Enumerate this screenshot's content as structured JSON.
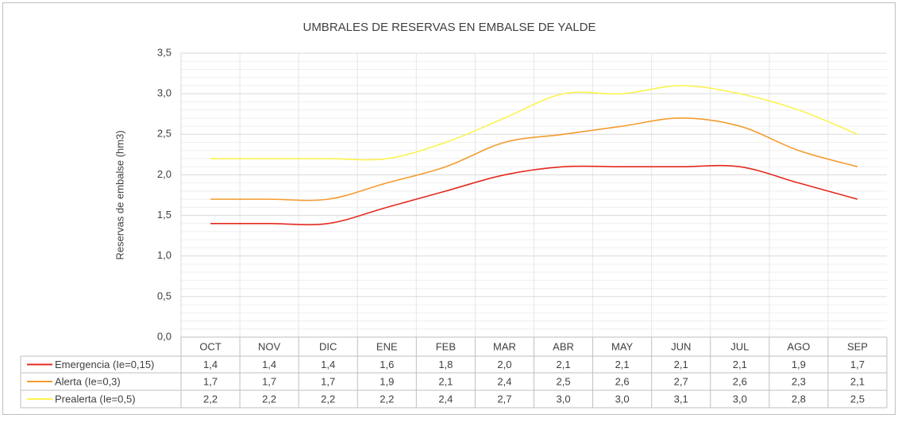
{
  "chart_data": {
    "type": "line",
    "title": "UMBRALES DE RESERVAS EN EMBALSE DE YALDE",
    "y_label": "Reservas de embalse (hm3)",
    "categories": [
      "OCT",
      "NOV",
      "DIC",
      "ENE",
      "FEB",
      "MAR",
      "ABR",
      "MAY",
      "JUN",
      "JUL",
      "AGO",
      "SEP"
    ],
    "series": [
      {
        "name": "Emergencia (Ie=0,15)",
        "color": "#e52a1f",
        "values": [
          1.4,
          1.4,
          1.4,
          1.6,
          1.8,
          2.0,
          2.1,
          2.1,
          2.1,
          2.1,
          1.9,
          1.7
        ],
        "value_labels": [
          "1,4",
          "1,4",
          "1,4",
          "1,6",
          "1,8",
          "2,0",
          "2,1",
          "2,1",
          "2,1",
          "2,1",
          "1,9",
          "1,7"
        ]
      },
      {
        "name": "Alerta (Ie=0,3)",
        "color": "#f39c2e",
        "values": [
          1.7,
          1.7,
          1.7,
          1.9,
          2.1,
          2.4,
          2.5,
          2.6,
          2.7,
          2.6,
          2.3,
          2.1
        ],
        "value_labels": [
          "1,7",
          "1,7",
          "1,7",
          "1,9",
          "2,1",
          "2,4",
          "2,5",
          "2,6",
          "2,7",
          "2,6",
          "2,3",
          "2,1"
        ]
      },
      {
        "name": "Prealerta (Ie=0,5)",
        "color": "#fbf34f",
        "values": [
          2.2,
          2.2,
          2.2,
          2.2,
          2.4,
          2.7,
          3.0,
          3.0,
          3.1,
          3.0,
          2.8,
          2.5
        ],
        "value_labels": [
          "2,2",
          "2,2",
          "2,2",
          "2,2",
          "2,4",
          "2,7",
          "3,0",
          "3,0",
          "3,1",
          "3,0",
          "2,8",
          "2,5"
        ]
      }
    ],
    "ylim": [
      0,
      3.5
    ],
    "yticks": [
      {
        "value": 0,
        "label": "0,0"
      },
      {
        "value": 0.5,
        "label": "0,5"
      },
      {
        "value": 1,
        "label": "1,0"
      },
      {
        "value": 1.5,
        "label": "1,5"
      },
      {
        "value": 2,
        "label": "2,0"
      },
      {
        "value": 2.5,
        "label": "2,5"
      },
      {
        "value": 3,
        "label": "3,0"
      },
      {
        "value": 3.5,
        "label": "3,5"
      }
    ],
    "grid": true
  }
}
